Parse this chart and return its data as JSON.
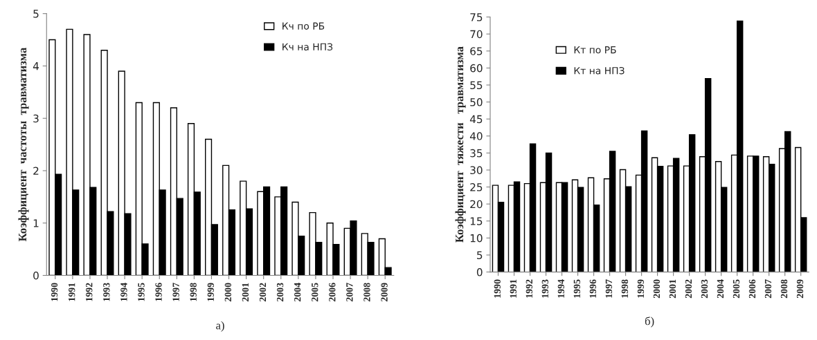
{
  "chart_data": [
    {
      "type": "bar",
      "ylabel": "Коэффициент  частоты  травматизма",
      "annotations": [
        "а)"
      ],
      "categories": [
        "1990",
        "1991",
        "1992",
        "1993",
        "1994",
        "1995",
        "1996",
        "1997",
        "1998",
        "1999",
        "2000",
        "2001",
        "2002",
        "2003",
        "2004",
        "2005",
        "2006",
        "2007",
        "2008",
        "2009"
      ],
      "series": [
        {
          "name": "Кч по РБ",
          "color": "#ffffff",
          "values": [
            4.5,
            4.7,
            4.6,
            4.3,
            3.9,
            3.3,
            3.3,
            3.2,
            2.9,
            2.6,
            2.1,
            1.8,
            1.6,
            1.5,
            1.4,
            1.2,
            1.0,
            0.9,
            0.8,
            0.7
          ]
        },
        {
          "name": "Кч на НПЗ",
          "color": "#000000",
          "values": [
            1.93,
            1.63,
            1.68,
            1.22,
            1.18,
            0.6,
            1.63,
            1.47,
            1.59,
            0.97,
            1.25,
            1.27,
            1.69,
            1.69,
            0.75,
            0.63,
            0.59,
            1.04,
            0.63,
            0.15
          ]
        }
      ],
      "ylim": [
        0,
        5
      ],
      "yticks": [
        0,
        1,
        2,
        3,
        4,
        5
      ],
      "grid": false,
      "legend": "top right"
    },
    {
      "type": "bar",
      "ylabel": "Коэффициент  тяжести   травматизма",
      "annotations": [
        "б)"
      ],
      "categories": [
        "1990",
        "1991",
        "1992",
        "1993",
        "1994",
        "1995",
        "1996",
        "1997",
        "1998",
        "1999",
        "2000",
        "2001",
        "2002",
        "2003",
        "2004",
        "2005",
        "2006",
        "2007",
        "2008",
        "2009"
      ],
      "series": [
        {
          "name": "Кт по РБ",
          "color": "#ffffff",
          "values": [
            25.5,
            25.5,
            26,
            26.3,
            26.3,
            27.1,
            27.7,
            27.4,
            30.1,
            28.5,
            33.6,
            31.2,
            31.2,
            33.9,
            32.5,
            34.4,
            34.1,
            33.9,
            36.3,
            36.6
          ]
        },
        {
          "name": "Кт на НПЗ",
          "color": "#000000",
          "values": [
            20.5,
            26.5,
            37.7,
            35,
            26.3,
            24.9,
            19.7,
            35.5,
            25.1,
            41.5,
            31.1,
            33.4,
            40.4,
            56.9,
            24.9,
            73.8,
            34.1,
            31.7,
            41.3,
            16
          ]
        }
      ],
      "ylim": [
        0,
        75
      ],
      "yticks": [
        0,
        5,
        10,
        15,
        20,
        25,
        30,
        35,
        40,
        45,
        50,
        55,
        60,
        65,
        70,
        75
      ],
      "grid": false,
      "legend": "top left"
    }
  ]
}
